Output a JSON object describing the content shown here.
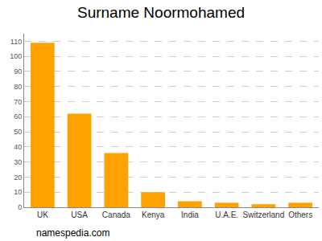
{
  "chart_data": {
    "type": "bar",
    "title": "Surname Noormohamed",
    "categories": [
      "UK",
      "USA",
      "Canada",
      "Kenya",
      "India",
      "U.A.E.",
      "Switzerland",
      "Others"
    ],
    "values": [
      109,
      62,
      36,
      10,
      4,
      3,
      2,
      3
    ],
    "color": "#ffa200",
    "ylim": [
      0,
      115
    ],
    "yticks": [
      0,
      10,
      20,
      30,
      40,
      50,
      60,
      70,
      80,
      90,
      100,
      110
    ],
    "grid": true,
    "annotations": [
      "namespedia.com"
    ]
  }
}
